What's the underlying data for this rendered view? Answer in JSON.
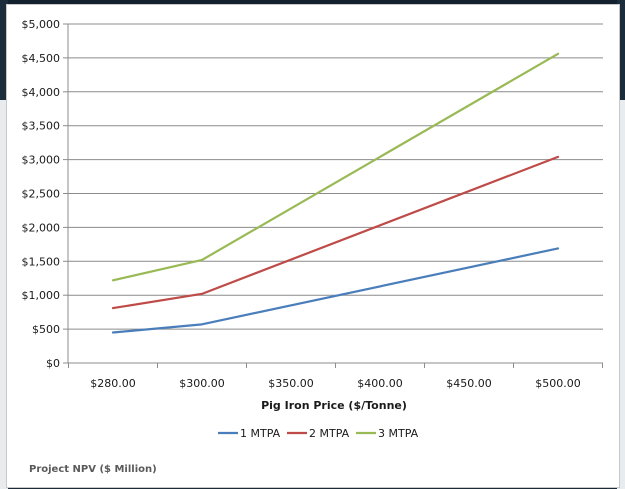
{
  "footer_label": "Project NPV ($ Million)",
  "chart_data": {
    "type": "line",
    "xlabel": "Pig Iron Price ($/Tonne)",
    "ylabel": "",
    "categories": [
      "$280.00",
      "$300.00",
      "$350.00",
      "$400.00",
      "$450.00",
      "$500.00"
    ],
    "x_positions": [
      280,
      300,
      320,
      340,
      360,
      380
    ],
    "x_highlighted_points": [
      280,
      300,
      380
    ],
    "y_ticks": [
      "$0",
      "$500",
      "$1,000",
      "$1,500",
      "$2,000",
      "$2,500",
      "$3,000",
      "$3,500",
      "$4,000",
      "$4,500",
      "$5,000"
    ],
    "ylim": [
      0,
      5000
    ],
    "grid": true,
    "legend_position": "bottom",
    "series": [
      {
        "name": "1 MTPA",
        "color": "#4a7ebb",
        "points": [
          [
            280,
            450
          ],
          [
            300,
            570
          ],
          [
            380,
            1690
          ]
        ]
      },
      {
        "name": "2 MTPA",
        "color": "#be4b48",
        "points": [
          [
            280,
            810
          ],
          [
            300,
            1020
          ],
          [
            380,
            3040
          ]
        ]
      },
      {
        "name": "3 MTPA",
        "color": "#98b954",
        "points": [
          [
            280,
            1220
          ],
          [
            300,
            1520
          ],
          [
            380,
            4560
          ]
        ]
      }
    ]
  }
}
